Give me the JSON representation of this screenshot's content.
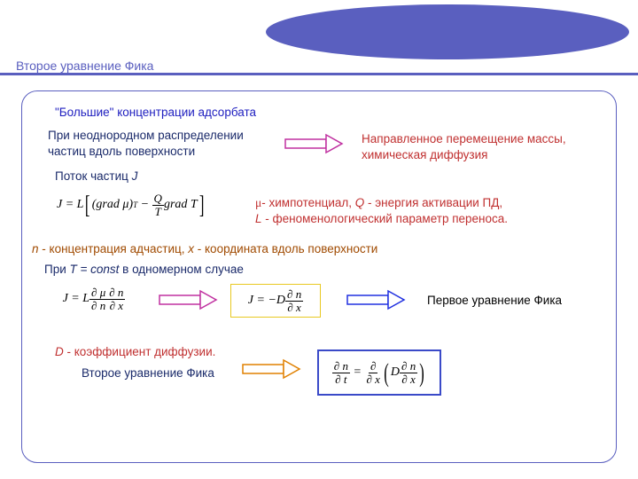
{
  "header": {
    "title": "Второе уравнение Фика",
    "line_color": "#5a5fbf",
    "ellipse_color": "#5a5fbf",
    "title_color": "#5a5fbf"
  },
  "frame": {
    "border_color": "#5a5fbf",
    "border_radius": 18
  },
  "text": {
    "t1": "\"Большие\" концентрации адсорбата",
    "t2": "При неоднородном распределении частиц вдоль поверхности",
    "t3": "Направленное перемещение массы, химическая диффузия",
    "t4a": "Поток частиц  ",
    "t4b": "J",
    "t5_mu": "μ",
    "t5a": "- химпотенциал, ",
    "t5b": "Q",
    "t5c": " - энергия активации ПД,",
    "t5d": " L",
    "t5e": " - феноменологический параметр переноса.",
    "t6a": "n",
    "t6b": " - концентрация адчастиц, ",
    "t6c": "x",
    "t6d": " - координата вдоль поверхности",
    "t7a": "При ",
    "t7b": "T = const",
    "t7c": " в одномерном случае",
    "t8": "Первое уравнение Фика",
    "t9a": "D",
    "t9b": " - коэффициент диффузии.",
    "t10": "Второе уравнение Фика"
  },
  "equations": {
    "eq1_html": "J = L <span class='bracket'>[</span>(grad μ)<sub style='font-size:9px'>T</sub> &nbsp;−&nbsp; <span class='frac'><span class='num'>Q</span><span class='den'>T</span></span> grad T<span class='bracket'>]</span>",
    "eq2_html": "J = L <span class='frac'><span class='num'>∂ μ</span><span class='den'>∂ n</span></span> <span class='frac'><span class='num'>∂ n</span><span class='den'>∂ x</span></span>",
    "eq3_html": "J = −D <span class='frac'><span class='num'>∂ n</span><span class='den'>∂ x</span></span>",
    "eq4_html": "<span class='frac'><span class='num'>∂ n</span><span class='den'>∂ t</span></span> &nbsp;=&nbsp; <span class='frac'><span class='num'>∂</span><span class='den'>∂ x</span></span><span class='paren'>(</span>D <span class='frac'><span class='num'>∂ n</span><span class='den'>∂ x</span></span><span class='paren'>)</span>"
  },
  "arrows": {
    "magenta_stroke": "#c030a0",
    "orange_stroke": "#e08000",
    "blue_stroke": "#2030e0",
    "shaft_h": 10,
    "head_w": 14
  },
  "colors": {
    "blue": "#2020c0",
    "navy": "#1a2a6a",
    "red": "#c03030",
    "brown": "#a04a00"
  }
}
